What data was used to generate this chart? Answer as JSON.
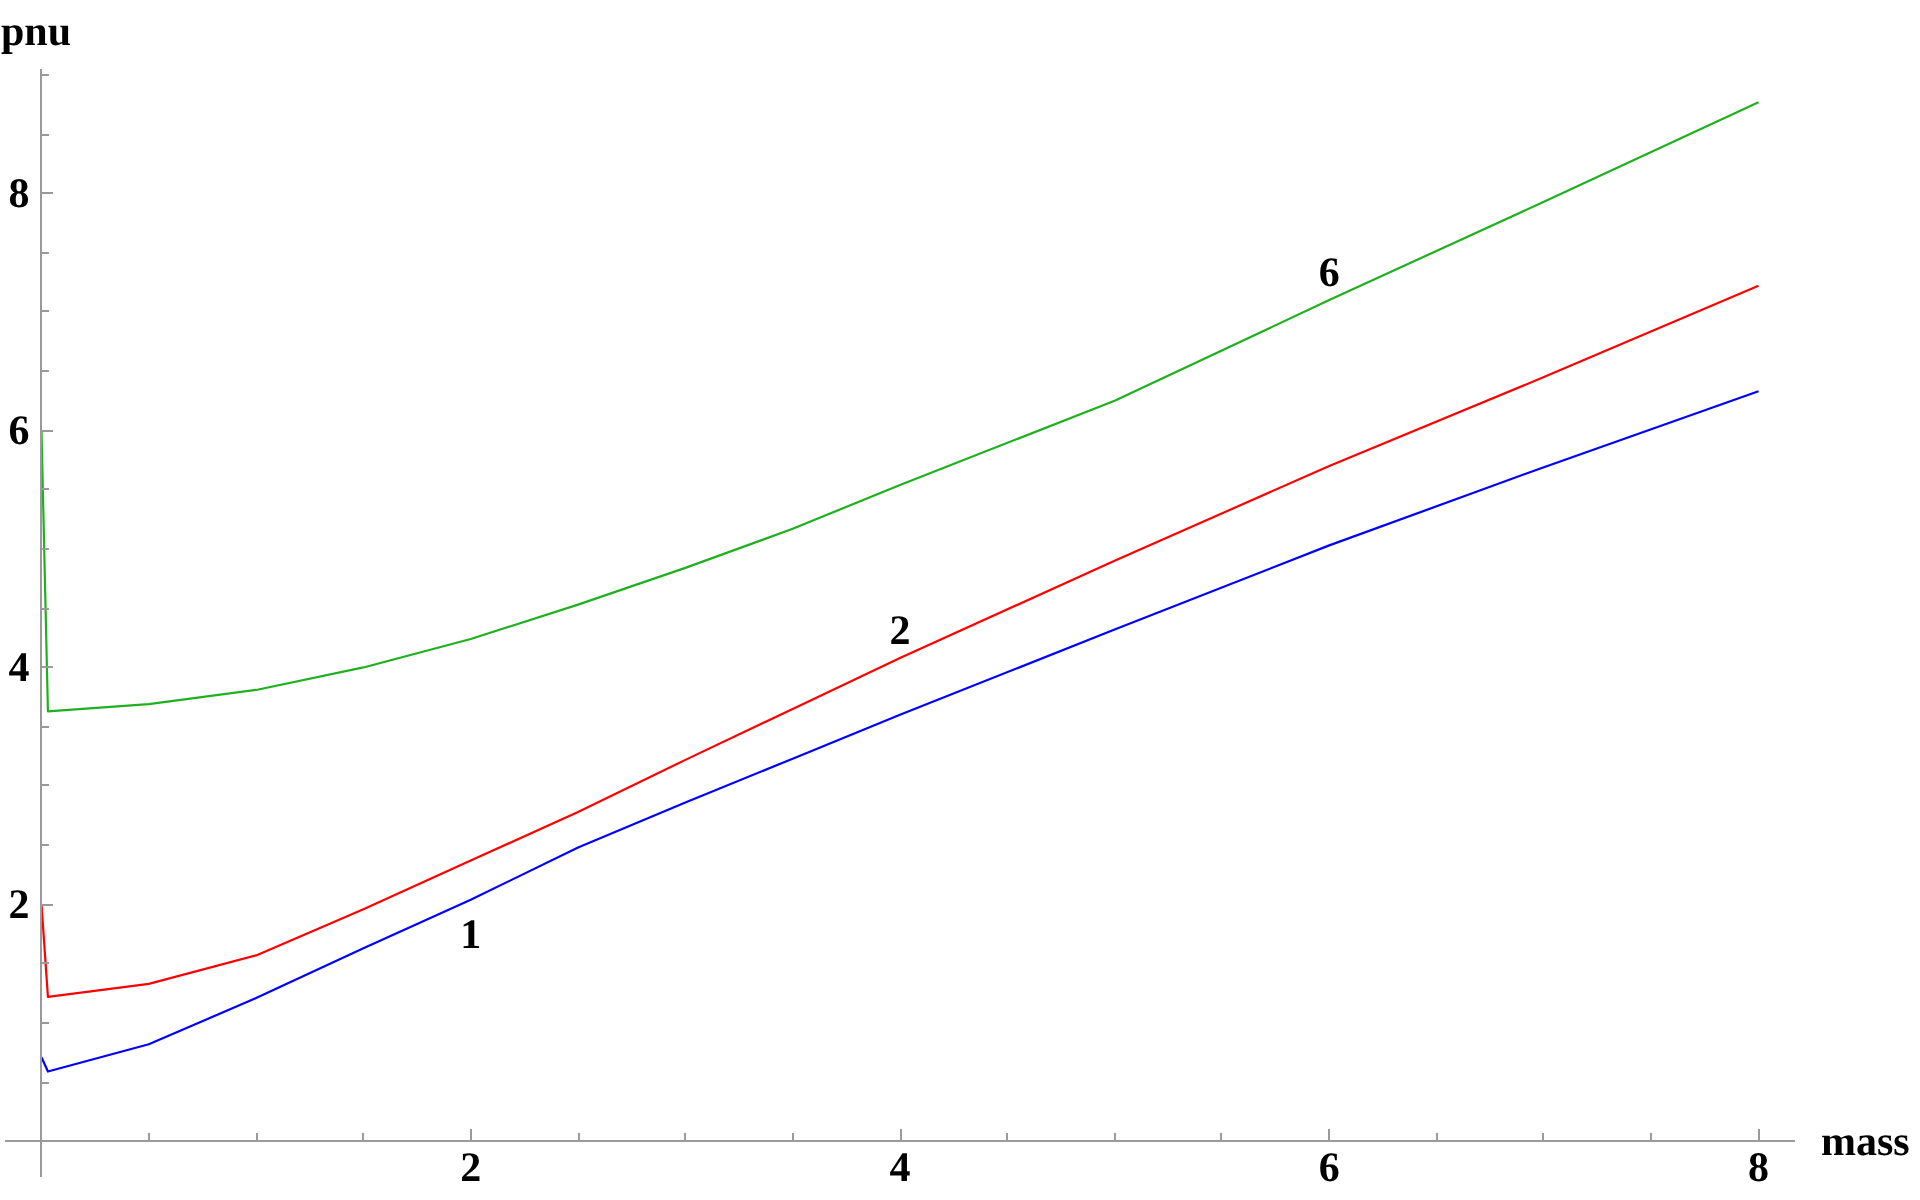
{
  "chart_data": {
    "type": "line",
    "xlabel": "mass",
    "ylabel": "pnu",
    "xlim": [
      -0.17,
      8.17
    ],
    "ylim": [
      -0.3,
      9.05
    ],
    "xticks": [
      {
        "value": 0.5,
        "label": null
      },
      {
        "value": 1,
        "label": null
      },
      {
        "value": 1.5,
        "label": null
      },
      2,
      {
        "value": 2.5,
        "label": null
      },
      {
        "value": 3,
        "label": null
      },
      {
        "value": 3.5,
        "label": null
      },
      4,
      {
        "value": 4.5,
        "label": null
      },
      {
        "value": 5,
        "label": null
      },
      {
        "value": 5.5,
        "label": null
      },
      6,
      {
        "value": 6.5,
        "label": null
      },
      {
        "value": 7,
        "label": null
      },
      {
        "value": 7.5,
        "label": null
      },
      8
    ],
    "yticks": [
      {
        "value": 0.5,
        "label": null
      },
      {
        "value": 1,
        "label": null
      },
      {
        "value": 1.5,
        "label": null
      },
      2,
      {
        "value": 2.5,
        "label": null
      },
      {
        "value": 3,
        "label": null
      },
      {
        "value": 3.5,
        "label": null
      },
      4,
      {
        "value": 4.5,
        "label": null
      },
      {
        "value": 5,
        "label": null
      },
      {
        "value": 5.5,
        "label": null
      },
      6,
      {
        "value": 6.5,
        "label": null
      },
      {
        "value": 7,
        "label": null
      },
      {
        "value": 7.5,
        "label": null
      },
      8,
      {
        "value": 8.5,
        "label": null
      },
      {
        "value": 9,
        "label": null
      }
    ],
    "x": [
      0,
      0.03,
      0.5,
      1.0,
      1.5,
      2.0,
      2.5,
      3.0,
      3.5,
      4.0,
      5.0,
      6.0,
      7.0,
      8.0
    ],
    "series": [
      {
        "name": "1",
        "color": "#0000ff",
        "values": [
          0.71,
          0.59,
          0.82,
          1.21,
          1.63,
          2.04,
          2.48,
          2.86,
          3.23,
          3.6,
          4.32,
          5.03,
          5.69,
          6.33
        ]
      },
      {
        "name": "2",
        "color": "#ff0000",
        "values": [
          2.0,
          1.22,
          1.33,
          1.57,
          1.96,
          2.37,
          2.78,
          3.22,
          3.65,
          4.08,
          4.9,
          5.7,
          6.45,
          7.22
        ]
      },
      {
        "name": "6",
        "color": "#1fb01f",
        "values": [
          6.0,
          3.63,
          3.69,
          3.81,
          4.0,
          4.24,
          4.53,
          4.84,
          5.17,
          5.54,
          6.25,
          7.1,
          7.93,
          8.77
        ]
      }
    ]
  }
}
